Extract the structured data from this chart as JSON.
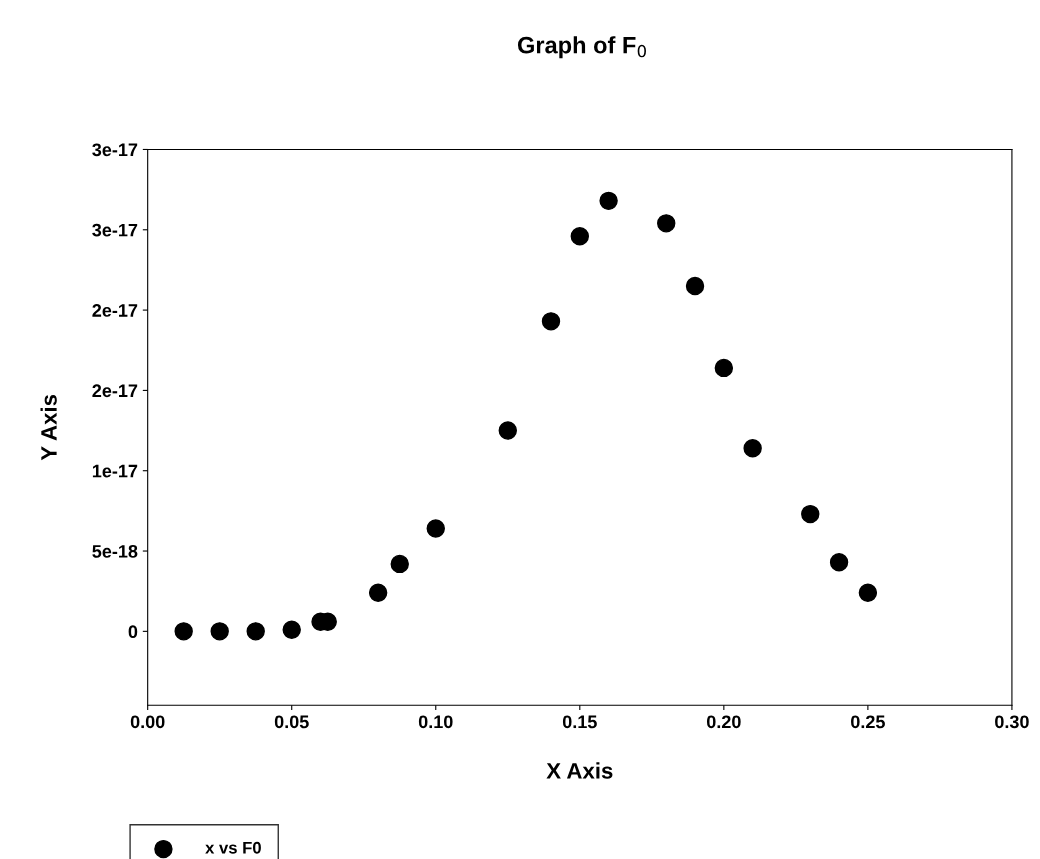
{
  "chart_data": {
    "type": "scatter",
    "title": "Graph of F$_{0}$",
    "xlabel": "X Axis",
    "ylabel": "Y Axis",
    "x": [
      0.0125,
      0.025,
      0.0375,
      0.05,
      0.06,
      0.0625,
      0.08,
      0.0875,
      0.1,
      0.125,
      0.14,
      0.15,
      0.16,
      0.18,
      0.19,
      0.2,
      0.21,
      0.23,
      0.24,
      0.25
    ],
    "series": [
      {
        "name": "x vs F0",
        "color": "#000000",
        "values": [
          0,
          0,
          0,
          1e-19,
          6e-19,
          6e-19,
          2.4e-18,
          4.2e-18,
          6.4e-18,
          1.25e-17,
          1.93e-17,
          2.46e-17,
          2.68e-17,
          2.54e-17,
          2.15e-17,
          1.64e-17,
          1.14e-17,
          7.3e-18,
          4.3e-18,
          2.4e-18
        ]
      }
    ],
    "xlim": [
      0,
      0.3
    ],
    "xticks": [
      {
        "value": 0,
        "label": "0.00"
      },
      {
        "value": 0.05,
        "label": "0.05"
      },
      {
        "value": 0.1,
        "label": "0.10"
      },
      {
        "value": 0.15,
        "label": "0.15"
      },
      {
        "value": 0.2,
        "label": "0.20"
      },
      {
        "value": 0.25,
        "label": "0.25"
      },
      {
        "value": 0.3,
        "label": "0.30"
      }
    ],
    "ylim": [
      -4.6e-18,
      3e-17
    ],
    "yticks": [
      {
        "value": 0,
        "label": "0"
      },
      {
        "value": 5e-18,
        "label": "5e-18"
      },
      {
        "value": 1e-17,
        "label": "1e-17"
      },
      {
        "value": 1.5e-17,
        "label": "2e-17"
      },
      {
        "value": 2e-17,
        "label": "2e-17"
      },
      {
        "value": 2.5e-17,
        "label": "3e-17"
      },
      {
        "value": 3e-17,
        "label": "3e-17"
      }
    ],
    "marker": "circle",
    "grid": false,
    "legend": "bottom left"
  }
}
